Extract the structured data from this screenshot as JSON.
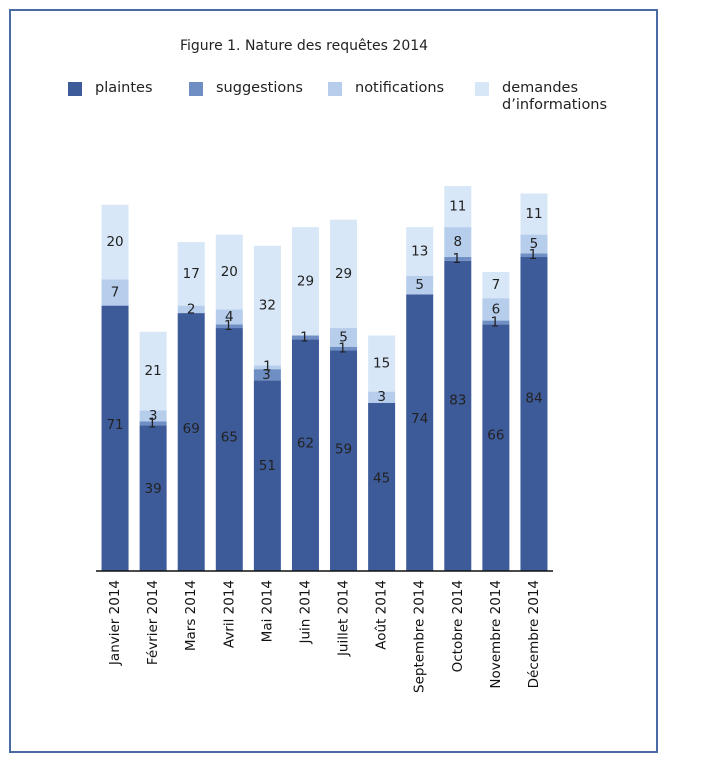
{
  "chart_data": {
    "type": "bar",
    "stacked": true,
    "title": "Figure 1. Nature des requêtes 2014",
    "categories": [
      "Janvier 2014",
      "Février 2014",
      "Mars 2014",
      "Avril 2014",
      "Mai 2014",
      "Juin 2014",
      "Juillet 2014",
      "Août 2014",
      "Septembre 2014",
      "Octobre 2014",
      "Novembre 2014",
      "Décembre 2014"
    ],
    "series": [
      {
        "name": "plaintes",
        "color": "#3d5a99",
        "values": [
          71,
          39,
          69,
          65,
          51,
          62,
          59,
          45,
          74,
          83,
          66,
          84
        ]
      },
      {
        "name": "suggestions",
        "color": "#6f8fc4",
        "values": [
          0,
          1,
          0,
          1,
          3,
          1,
          1,
          0,
          0,
          1,
          1,
          1
        ]
      },
      {
        "name": "notifications",
        "color": "#b6cdec",
        "values": [
          7,
          3,
          2,
          4,
          1,
          0,
          5,
          3,
          5,
          8,
          6,
          5
        ]
      },
      {
        "name": "demandes\nd’informations",
        "color": "#d7e7f7",
        "values": [
          20,
          21,
          17,
          20,
          32,
          29,
          29,
          15,
          13,
          11,
          7,
          11
        ]
      }
    ],
    "data_labels": [
      [
        71,
        null,
        7,
        20
      ],
      [
        39,
        1,
        3,
        21
      ],
      [
        69,
        null,
        2,
        17
      ],
      [
        65,
        1,
        4,
        20
      ],
      [
        51,
        3,
        1,
        32
      ],
      [
        62,
        1,
        null,
        29
      ],
      [
        59,
        1,
        5,
        29
      ],
      [
        45,
        null,
        3,
        15
      ],
      [
        74,
        null,
        5,
        13
      ],
      [
        83,
        1,
        8,
        11
      ],
      [
        66,
        1,
        6,
        7
      ],
      [
        84,
        1,
        5,
        11
      ]
    ],
    "ylim": [
      0,
      103
    ],
    "grid": false,
    "legend_position": "top"
  }
}
